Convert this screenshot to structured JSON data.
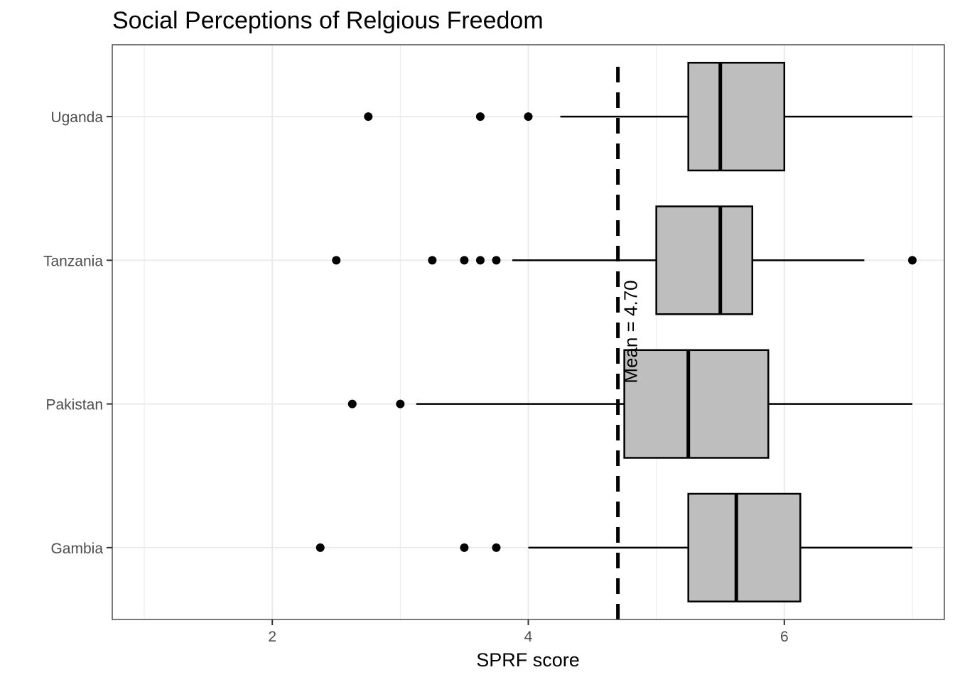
{
  "chart_data": {
    "type": "boxplot",
    "orientation": "horizontal",
    "title": "Social Perceptions of Relgious Freedom",
    "xlabel": "SPRF score",
    "ylabel": "",
    "xlim": [
      0.75,
      7.25
    ],
    "xticks": [
      2,
      4,
      6
    ],
    "xgrid_minor": [
      1,
      3,
      5,
      7
    ],
    "grid": true,
    "categories": [
      "Uganda",
      "Tanzania",
      "Pakistan",
      "Gambia"
    ],
    "boxes": [
      {
        "category": "Uganda",
        "whisker_low": 4.25,
        "q1": 5.25,
        "median": 5.5,
        "q3": 6.0,
        "whisker_high": 7.0,
        "outliers": [
          2.75,
          3.625,
          4.0
        ]
      },
      {
        "category": "Tanzania",
        "whisker_low": 3.875,
        "q1": 5.0,
        "median": 5.5,
        "q3": 5.75,
        "whisker_high": 6.625,
        "outliers": [
          2.5,
          3.25,
          3.5,
          3.625,
          3.75,
          7.0
        ]
      },
      {
        "category": "Pakistan",
        "whisker_low": 3.125,
        "q1": 4.75,
        "median": 5.25,
        "q3": 5.875,
        "whisker_high": 7.0,
        "outliers": [
          2.625,
          3.0
        ]
      },
      {
        "category": "Gambia",
        "whisker_low": 4.0,
        "q1": 5.25,
        "median": 5.625,
        "q3": 6.125,
        "whisker_high": 7.0,
        "outliers": [
          2.375,
          3.5,
          3.75
        ]
      }
    ],
    "reference_line": {
      "x": 4.7,
      "style": "dashed",
      "label": "Mean = 4.70"
    },
    "colors": {
      "box_fill": "#bebebe",
      "stroke": "#000000",
      "grid": "#ebebeb",
      "panel_border": "#333333",
      "tick_text": "#4d4d4d"
    }
  }
}
